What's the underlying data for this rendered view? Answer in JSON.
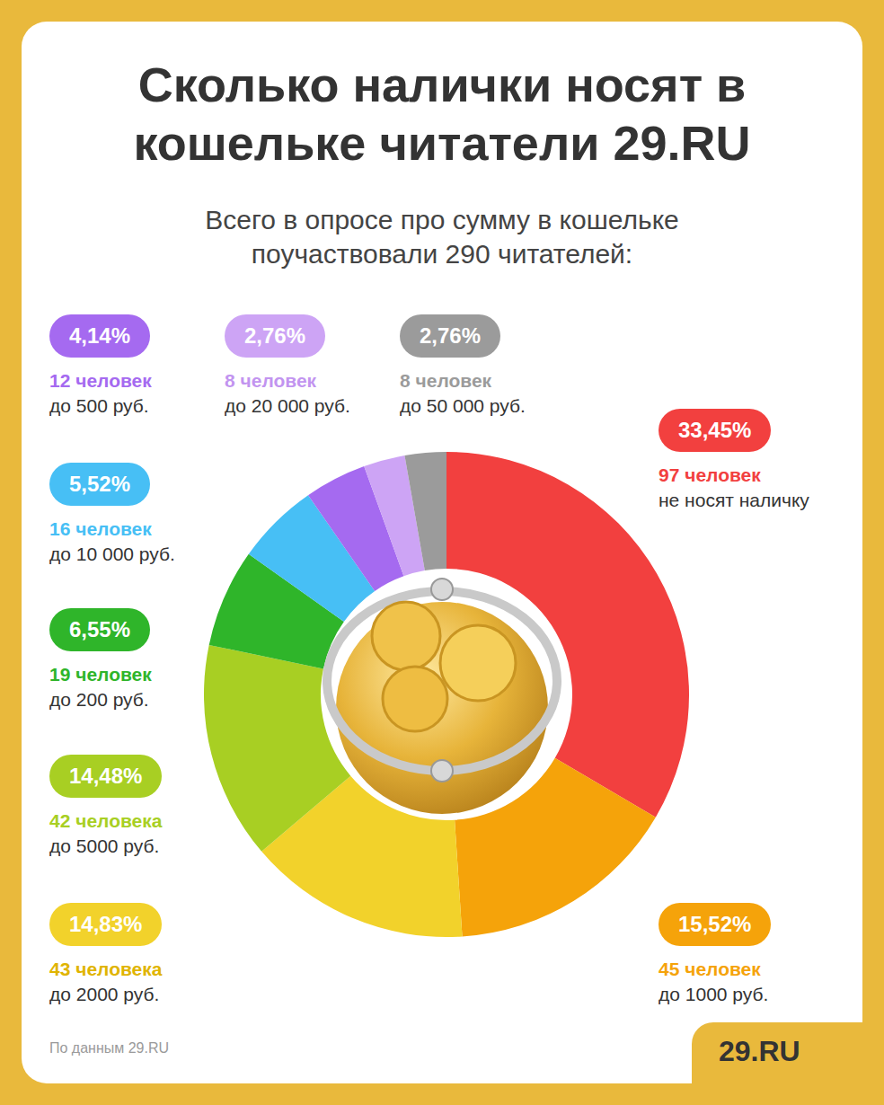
{
  "chart_data": {
    "type": "pie",
    "title": "Сколько налички носят в кошельке читатели 29.RU",
    "subtitle": "Всего в опросе про сумму в кошельке поучаствовали 290 читателей:",
    "categories": [
      "не носят наличку",
      "до 1000 руб.",
      "до 2000 руб.",
      "до 5000 руб.",
      "до 200 руб.",
      "до 10 000 руб.",
      "до 500 руб.",
      "до 20 000 руб.",
      "до 50 000 руб."
    ],
    "values": [
      33.45,
      15.52,
      14.83,
      14.48,
      6.55,
      5.52,
      4.14,
      2.76,
      2.76
    ],
    "value_labels": [
      "33,45%",
      "15,52%",
      "14,83%",
      "14,48%",
      "6,55%",
      "5,52%",
      "4,14%",
      "2,76%",
      "2,76%"
    ],
    "count_labels": [
      "97 человек",
      "45 человек",
      "43 человека",
      "42 человека",
      "19 человек",
      "16 человек",
      "12 человек",
      "8 человек",
      "8 человек"
    ],
    "colors": [
      "#f2403f",
      "#f5a30a",
      "#f2d22b",
      "#a8cf23",
      "#2fb52a",
      "#47bff5",
      "#a56af0",
      "#cda4f5",
      "#9b9b9b"
    ],
    "data_labels": true,
    "legend": false,
    "source": "По данным 29.RU",
    "logo": "29.RU"
  }
}
